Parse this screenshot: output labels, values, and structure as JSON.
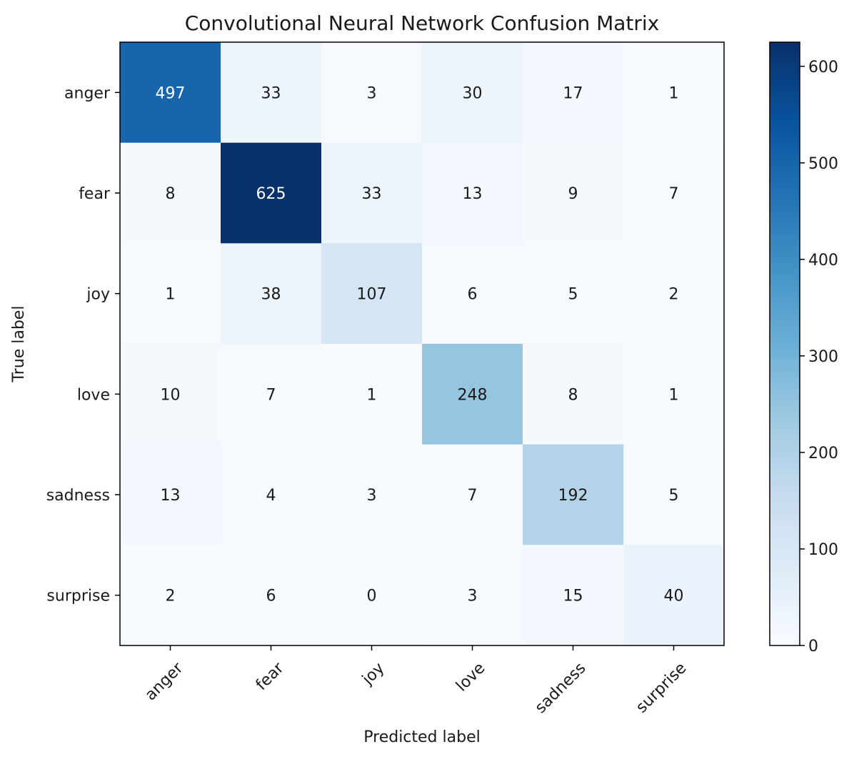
{
  "chart_data": {
    "type": "heatmap",
    "title": "Convolutional Neural Network Confusion Matrix",
    "xlabel": "Predicted label",
    "ylabel": "True label",
    "x_categories": [
      "anger",
      "fear",
      "joy",
      "love",
      "sadness",
      "surprise"
    ],
    "y_categories": [
      "anger",
      "fear",
      "joy",
      "love",
      "sadness",
      "surprise"
    ],
    "values": [
      [
        497,
        33,
        3,
        30,
        17,
        1
      ],
      [
        8,
        625,
        33,
        13,
        9,
        7
      ],
      [
        1,
        38,
        107,
        6,
        5,
        2
      ],
      [
        10,
        7,
        1,
        248,
        8,
        1
      ],
      [
        13,
        4,
        3,
        7,
        192,
        5
      ],
      [
        2,
        6,
        0,
        3,
        15,
        40
      ]
    ],
    "colormap": "Blues",
    "colorbar": {
      "min": 0,
      "max": 625,
      "ticks": [
        0,
        100,
        200,
        300,
        400,
        500,
        600
      ]
    },
    "x_tick_rotation_deg": 45,
    "grid": false
  }
}
